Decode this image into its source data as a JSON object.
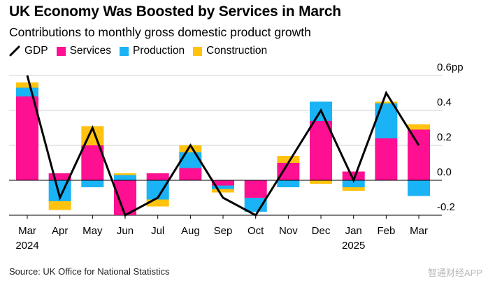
{
  "title": "UK Economy Was Boosted by Services in March",
  "subtitle": "Contributions to monthly gross domestic product growth",
  "legend": {
    "gdp": "GDP",
    "services": "Services",
    "production": "Production",
    "construction": "Construction"
  },
  "colors": {
    "services": "#ff0f91",
    "production": "#1ab3f5",
    "construction": "#ffc20e",
    "gdp": "#000000",
    "grid": "#d0d0d0"
  },
  "source": "Source: UK Office for National Statistics",
  "watermark": "智通财经APP",
  "chart_data": {
    "type": "bar",
    "stacked": true,
    "title": "UK Economy Was Boosted by Services in March",
    "subtitle": "Contributions to monthly gross domestic product growth",
    "categories": [
      "Mar",
      "Apr",
      "May",
      "Jun",
      "Jul",
      "Aug",
      "Sep",
      "Oct",
      "Nov",
      "Dec",
      "Jan",
      "Feb",
      "Mar"
    ],
    "year_labels": [
      "2024",
      "",
      "",
      "",
      "",
      "",
      "",
      "",
      "",
      "",
      "2025",
      "",
      ""
    ],
    "series": [
      {
        "name": "Services",
        "values": [
          0.48,
          0.04,
          0.2,
          -0.2,
          0.04,
          0.07,
          -0.03,
          -0.1,
          0.1,
          0.34,
          0.05,
          0.24,
          0.29
        ]
      },
      {
        "name": "Production",
        "values": [
          0.05,
          -0.12,
          -0.04,
          0.03,
          -0.11,
          0.09,
          -0.02,
          -0.08,
          -0.04,
          0.11,
          -0.04,
          0.2,
          -0.09
        ]
      },
      {
        "name": "Construction",
        "values": [
          0.03,
          -0.05,
          0.11,
          0.01,
          -0.04,
          0.04,
          -0.02,
          0.0,
          0.04,
          -0.02,
          -0.02,
          0.01,
          0.03
        ]
      }
    ],
    "line": {
      "name": "GDP",
      "values": [
        0.6,
        -0.1,
        0.3,
        -0.2,
        -0.1,
        0.2,
        -0.1,
        -0.2,
        0.1,
        0.4,
        0.0,
        0.5,
        0.2
      ]
    },
    "yticks": [
      -0.2,
      0.0,
      0.2,
      0.4,
      0.6
    ],
    "ytick_labels": [
      "-0.2",
      "0.0",
      "0.2",
      "0.4",
      "0.6pp"
    ],
    "ylim": [
      -0.2,
      0.6
    ],
    "xlabel": "",
    "ylabel": "",
    "grid": true,
    "legend_position": "top-left"
  }
}
